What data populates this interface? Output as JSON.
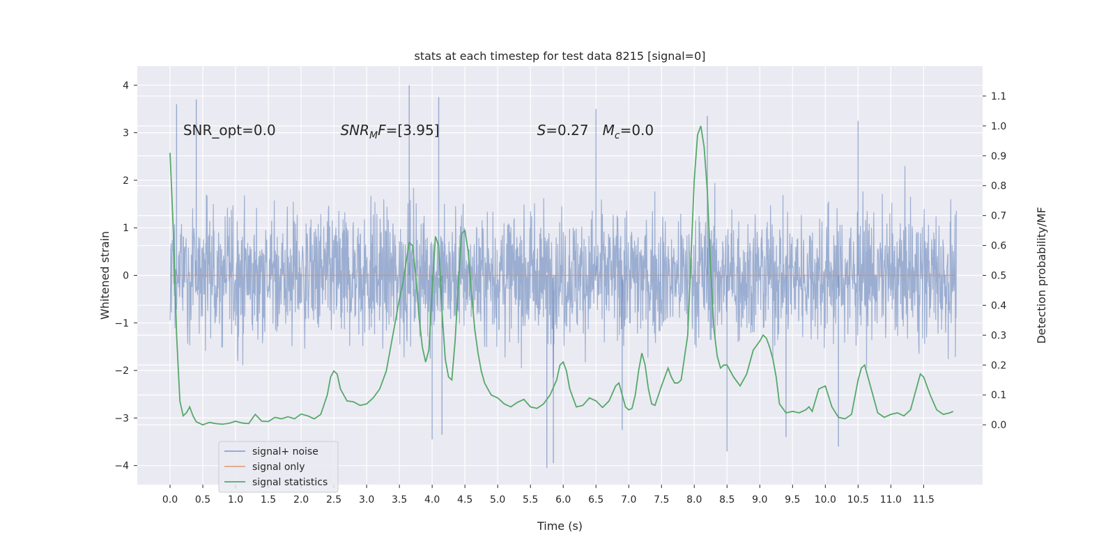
{
  "chart_data": {
    "type": "line",
    "title": "stats at each timestep for test data 8215 [signal=0]",
    "xlabel": "Time (s)",
    "ylabel": "Whitened strain",
    "ylabel_right": "Detection probability/MF",
    "xlim": [
      -0.5,
      12.4
    ],
    "ylim": [
      -4.4,
      4.4
    ],
    "ylim_right": [
      -0.2,
      1.2
    ],
    "xticks": [
      0.0,
      0.5,
      1.0,
      1.5,
      2.0,
      2.5,
      3.0,
      3.5,
      4.0,
      4.5,
      5.0,
      5.5,
      6.0,
      6.5,
      7.0,
      7.5,
      8.0,
      8.5,
      9.0,
      9.5,
      10.0,
      10.5,
      11.0,
      11.5
    ],
    "xtick_labels": [
      "0.0",
      "0.5",
      "1.0",
      "1.5",
      "2.0",
      "2.5",
      "3.0",
      "3.5",
      "4.0",
      "4.5",
      "5.0",
      "5.5",
      "6.0",
      "6.5",
      "7.0",
      "7.5",
      "8.0",
      "8.5",
      "9.0",
      "9.5",
      "10.0",
      "10.5",
      "11.0",
      "11.5"
    ],
    "yticks": [
      -4,
      -3,
      -2,
      -1,
      0,
      1,
      2,
      3,
      4
    ],
    "ytick_labels": [
      "−4",
      "−3",
      "−2",
      "−1",
      "0",
      "1",
      "2",
      "3",
      "4"
    ],
    "yticks_right": [
      0.0,
      0.1,
      0.2,
      0.3,
      0.4,
      0.5,
      0.6,
      0.7,
      0.8,
      0.9,
      1.0,
      1.1
    ],
    "ytick_right_labels": [
      "0.0",
      "0.1",
      "0.2",
      "0.3",
      "0.4",
      "0.5",
      "0.6",
      "0.7",
      "0.8",
      "0.9",
      "1.0",
      "1.1"
    ],
    "grid": true,
    "legend_position": "lower-left",
    "annotations": [
      {
        "text": "SNR_opt=0.0",
        "x": 0.2,
        "y": 3.05
      },
      {
        "text": "SNR_MF=[3.95]",
        "x": 2.6,
        "y": 3.05
      },
      {
        "text": "S=0.27",
        "x": 5.6,
        "y": 3.05
      },
      {
        "text": "M_c=0.0",
        "x": 6.6,
        "y": 3.05
      }
    ],
    "series": [
      {
        "name": "signal+ noise",
        "axis": "left",
        "color": "#4c72b0",
        "kind": "noise",
        "t_range": [
          0.0,
          12.0
        ],
        "typical_range": [
          -2.5,
          2.5
        ],
        "peaks": [
          {
            "x": 0.4,
            "y": 3.7
          },
          {
            "x": 3.65,
            "y": 4.0
          },
          {
            "x": 4.1,
            "y": 3.75
          },
          {
            "x": 5.75,
            "y": -4.05
          },
          {
            "x": 5.85,
            "y": -3.95
          },
          {
            "x": 8.5,
            "y": -3.7
          },
          {
            "x": 4.0,
            "y": -3.45
          },
          {
            "x": 4.15,
            "y": -3.35
          },
          {
            "x": 10.2,
            "y": -3.6
          },
          {
            "x": 8.2,
            "y": 3.35
          },
          {
            "x": 6.5,
            "y": 3.5
          },
          {
            "x": 10.5,
            "y": 3.25
          },
          {
            "x": 0.1,
            "y": 3.6
          },
          {
            "x": 9.4,
            "y": -3.4
          },
          {
            "x": 6.9,
            "y": -3.25
          }
        ]
      },
      {
        "name": "signal only",
        "axis": "left",
        "color": "#dd8452",
        "x": [
          0.0,
          12.0
        ],
        "y": [
          0.0,
          0.0
        ]
      },
      {
        "name": "signal statistics",
        "axis": "right",
        "color": "#55a868",
        "x": [
          0.0,
          0.05,
          0.1,
          0.15,
          0.2,
          0.25,
          0.3,
          0.35,
          0.4,
          0.45,
          0.5,
          0.6,
          0.7,
          0.8,
          0.9,
          1.0,
          1.1,
          1.2,
          1.3,
          1.4,
          1.5,
          1.6,
          1.7,
          1.8,
          1.9,
          2.0,
          2.1,
          2.2,
          2.3,
          2.4,
          2.45,
          2.5,
          2.55,
          2.6,
          2.7,
          2.8,
          2.9,
          3.0,
          3.1,
          3.2,
          3.3,
          3.4,
          3.5,
          3.55,
          3.6,
          3.65,
          3.7,
          3.75,
          3.8,
          3.85,
          3.9,
          3.95,
          4.0,
          4.05,
          4.1,
          4.15,
          4.2,
          4.25,
          4.3,
          4.35,
          4.4,
          4.45,
          4.5,
          4.55,
          4.6,
          4.65,
          4.7,
          4.75,
          4.8,
          4.85,
          4.9,
          5.0,
          5.1,
          5.2,
          5.3,
          5.4,
          5.5,
          5.6,
          5.7,
          5.8,
          5.9,
          5.95,
          6.0,
          6.05,
          6.1,
          6.15,
          6.2,
          6.3,
          6.4,
          6.5,
          6.6,
          6.7,
          6.8,
          6.85,
          6.9,
          6.95,
          7.0,
          7.05,
          7.1,
          7.15,
          7.2,
          7.25,
          7.3,
          7.35,
          7.4,
          7.5,
          7.6,
          7.65,
          7.7,
          7.75,
          7.8,
          7.9,
          8.0,
          8.05,
          8.1,
          8.15,
          8.2,
          8.25,
          8.3,
          8.35,
          8.4,
          8.45,
          8.5,
          8.6,
          8.7,
          8.8,
          8.9,
          9.0,
          9.05,
          9.1,
          9.15,
          9.2,
          9.25,
          9.3,
          9.4,
          9.5,
          9.6,
          9.7,
          9.75,
          9.8,
          9.9,
          10.0,
          10.1,
          10.2,
          10.3,
          10.4,
          10.5,
          10.55,
          10.6,
          10.7,
          10.8,
          10.9,
          11.0,
          11.1,
          11.2,
          11.3,
          11.4,
          11.45,
          11.5,
          11.6,
          11.7,
          11.8,
          11.9,
          11.95
        ],
        "y": [
          0.91,
          0.65,
          0.3,
          0.08,
          0.03,
          0.04,
          0.06,
          0.03,
          0.01,
          0.005,
          0.0,
          0.008,
          0.004,
          0.002,
          0.005,
          0.012,
          0.006,
          0.004,
          0.035,
          0.012,
          0.011,
          0.025,
          0.02,
          0.027,
          0.02,
          0.036,
          0.03,
          0.02,
          0.035,
          0.1,
          0.16,
          0.18,
          0.17,
          0.12,
          0.08,
          0.077,
          0.065,
          0.07,
          0.09,
          0.12,
          0.18,
          0.3,
          0.42,
          0.47,
          0.54,
          0.61,
          0.6,
          0.5,
          0.36,
          0.26,
          0.21,
          0.25,
          0.45,
          0.63,
          0.6,
          0.38,
          0.22,
          0.16,
          0.15,
          0.28,
          0.47,
          0.64,
          0.65,
          0.58,
          0.44,
          0.32,
          0.24,
          0.18,
          0.14,
          0.12,
          0.1,
          0.09,
          0.07,
          0.06,
          0.075,
          0.085,
          0.06,
          0.055,
          0.07,
          0.1,
          0.15,
          0.2,
          0.21,
          0.18,
          0.12,
          0.09,
          0.06,
          0.065,
          0.09,
          0.08,
          0.058,
          0.08,
          0.13,
          0.14,
          0.1,
          0.06,
          0.05,
          0.055,
          0.1,
          0.18,
          0.24,
          0.2,
          0.12,
          0.07,
          0.065,
          0.13,
          0.19,
          0.16,
          0.14,
          0.14,
          0.15,
          0.3,
          0.82,
          0.97,
          1.0,
          0.93,
          0.78,
          0.52,
          0.32,
          0.23,
          0.19,
          0.2,
          0.2,
          0.16,
          0.13,
          0.17,
          0.25,
          0.28,
          0.3,
          0.29,
          0.26,
          0.22,
          0.16,
          0.07,
          0.04,
          0.045,
          0.04,
          0.05,
          0.06,
          0.045,
          0.12,
          0.13,
          0.06,
          0.025,
          0.02,
          0.035,
          0.15,
          0.19,
          0.2,
          0.12,
          0.04,
          0.025,
          0.035,
          0.04,
          0.03,
          0.05,
          0.13,
          0.17,
          0.16,
          0.1,
          0.05,
          0.035,
          0.04,
          0.045
        ]
      }
    ]
  }
}
